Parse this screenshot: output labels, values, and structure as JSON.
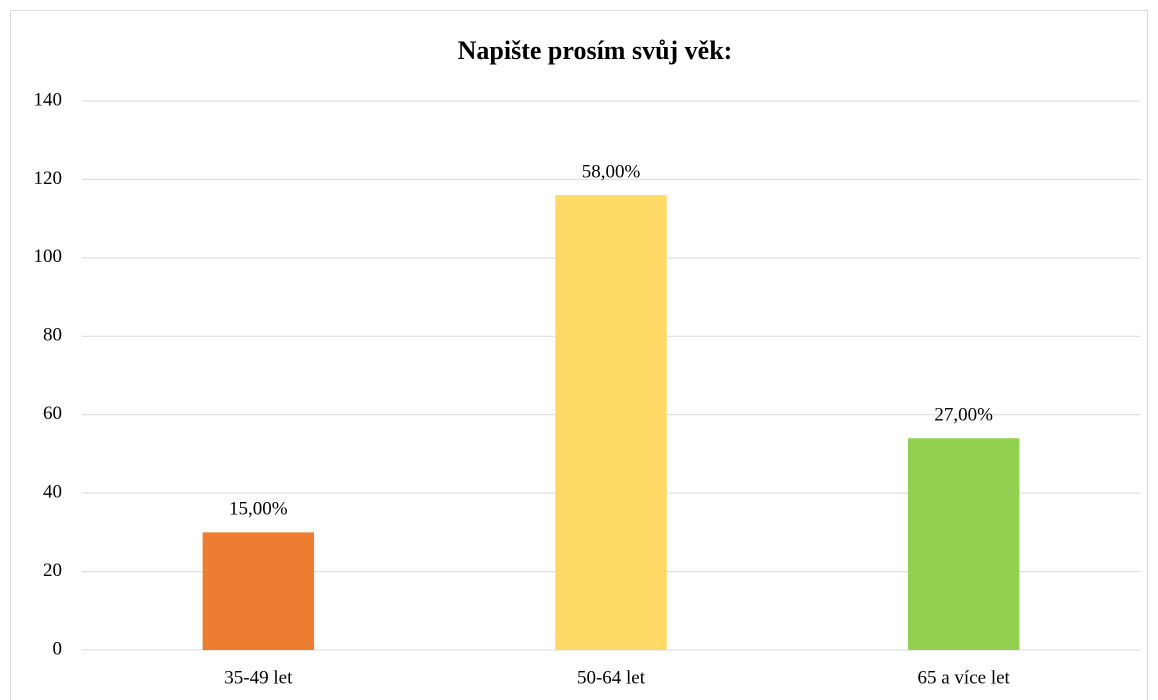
{
  "chart_data": {
    "type": "bar",
    "title": "Napište prosím svůj věk:",
    "categories": [
      "35-49 let",
      "50-64 let",
      "65 a více let"
    ],
    "values": [
      30,
      116,
      54
    ],
    "value_labels": [
      "15,00%",
      "58,00%",
      "27,00%"
    ],
    "colors": [
      "#ed7d31",
      "#ffd966",
      "#92d050"
    ],
    "ylim": [
      0,
      140
    ],
    "yticks": [
      0,
      20,
      40,
      60,
      80,
      100,
      120,
      140
    ],
    "grid": true
  }
}
